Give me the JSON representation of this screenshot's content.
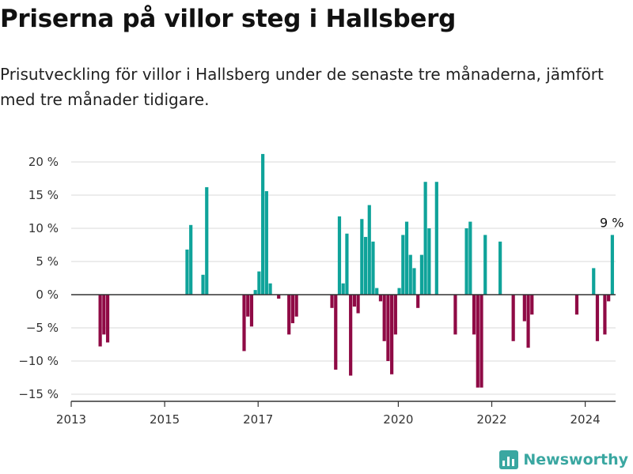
{
  "title": "Priserna på villor steg i Hallsberg",
  "subtitle": "Prisutveckling för villor i Hallsberg under de senaste tre månaderna, jämfört med tre månader tidigare.",
  "brand": "Newsworthy",
  "colors": {
    "positive": "#0fa39a",
    "negative": "#8f0a45",
    "grid": "#d9d9d9",
    "axis": "#333333",
    "brand": "#3aa7a1"
  },
  "chart_data": {
    "type": "bar",
    "ylim": [
      -16,
      22
    ],
    "xlim": [
      2013.0,
      2024.65
    ],
    "y_ticks": [
      20,
      15,
      10,
      5,
      0,
      -5,
      -10,
      -15
    ],
    "y_tick_labels": [
      "20 %",
      "15 %",
      "10 %",
      "5 %",
      "0 %",
      "−5 %",
      "−10 %",
      "−15 %"
    ],
    "x_ticks": [
      2013,
      2015,
      2017,
      2020,
      2022,
      2024
    ],
    "x_tick_labels": [
      "2013",
      "2015",
      "2017",
      "2020",
      "2022",
      "2024"
    ],
    "grid": true,
    "annotation": {
      "text": "9 %",
      "x": 2024.57,
      "y": 9
    },
    "x": [
      2013.62,
      2013.7,
      2013.78,
      2015.48,
      2015.56,
      2015.82,
      2015.9,
      2016.7,
      2016.78,
      2016.86,
      2016.94,
      2017.02,
      2017.1,
      2017.18,
      2017.26,
      2017.44,
      2017.66,
      2017.74,
      2017.82,
      2018.58,
      2018.66,
      2018.74,
      2018.82,
      2018.9,
      2018.98,
      2019.06,
      2019.14,
      2019.22,
      2019.3,
      2019.38,
      2019.46,
      2019.54,
      2019.62,
      2019.7,
      2019.78,
      2019.86,
      2019.94,
      2020.02,
      2020.1,
      2020.18,
      2020.26,
      2020.34,
      2020.42,
      2020.5,
      2020.58,
      2020.66,
      2020.82,
      2021.22,
      2021.46,
      2021.54,
      2021.62,
      2021.7,
      2021.78,
      2021.86,
      2022.18,
      2022.46,
      2022.7,
      2022.78,
      2022.86,
      2023.82,
      2024.18,
      2024.26,
      2024.42,
      2024.5,
      2024.58
    ],
    "values": [
      -7.8,
      -6,
      -7.2,
      6.8,
      10.5,
      3,
      16.2,
      -8.5,
      -3.3,
      -4.8,
      0.7,
      3.5,
      21.2,
      15.6,
      1.7,
      -0.6,
      -6,
      -4.3,
      -3.3,
      -2,
      -11.3,
      11.8,
      1.7,
      9.2,
      -12.2,
      -1.8,
      -2.8,
      11.4,
      8.7,
      13.5,
      8,
      1,
      -1,
      -7,
      -10,
      -12,
      -6,
      1,
      9,
      11,
      6,
      4,
      -2,
      6,
      17,
      10,
      17,
      -6,
      10,
      11,
      -6,
      -14,
      -14,
      9,
      8,
      -7,
      -4,
      -8,
      -3,
      -3,
      4,
      -7,
      -6,
      -1,
      9
    ]
  }
}
